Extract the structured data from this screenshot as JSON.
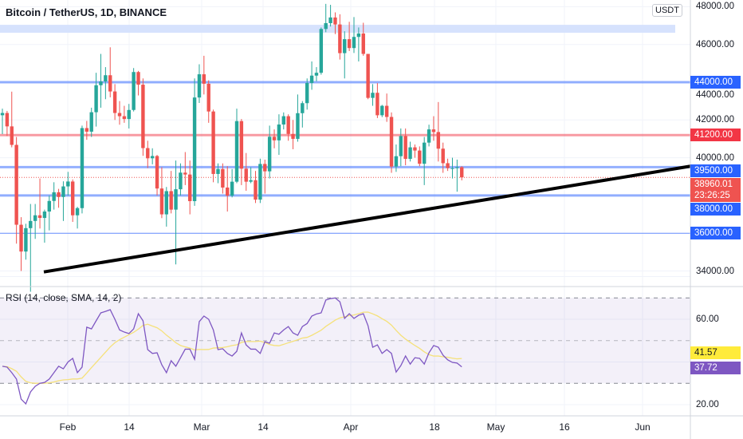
{
  "header": {
    "title": "Bitcoin / TetherUS, 1D, BINANCE",
    "currency_badge": "USDT"
  },
  "rsi": {
    "title": "RSI (14, close, SMA, 14, 2)",
    "value_label": "37.72",
    "sma_label": "41.57",
    "values": [
      38,
      37.6,
      35,
      32,
      22.6,
      20.4,
      26,
      28.6,
      30,
      30.4,
      32,
      35,
      38,
      36.8,
      40,
      41.7,
      35,
      37.6,
      56.3,
      55.5,
      59.3,
      63,
      63.7,
      64.5,
      60,
      55,
      54,
      53.3,
      55.5,
      62.6,
      59.3,
      45.8,
      44,
      44.3,
      38.7,
      35,
      40.6,
      38,
      42,
      46,
      46,
      41.3,
      58.9,
      61.5,
      60,
      55,
      45.8,
      46.2,
      44,
      42.8,
      45,
      53.6,
      48,
      46,
      46,
      44,
      49.5,
      48.8,
      53.6,
      53,
      55,
      56.6,
      53.6,
      52.5,
      56.6,
      58,
      61.5,
      62.5,
      63,
      69,
      69.7,
      70,
      68.2,
      60.4,
      62.6,
      60.4,
      61.9,
      62.6,
      57,
      46.9,
      48,
      44,
      45.8,
      44,
      35.3,
      38.3,
      42.8,
      39,
      42,
      41.7,
      39,
      44.3,
      47.7,
      46.9,
      43.2,
      41,
      39.8,
      39.5,
      37.72
    ],
    "axis_labels": [
      "60.00",
      "20.00"
    ],
    "upper_band": 70,
    "middle": 50,
    "lower_band": 30,
    "sma_length": 14
  },
  "price_axis": {
    "labels": [
      "48000.00",
      "46000.00",
      "44000.00",
      "42000.00",
      "40000.00",
      "34000.00"
    ]
  },
  "levels": [
    {
      "price": 44000,
      "label": "44000.00",
      "color": "#2962ff",
      "style": "line-blue"
    },
    {
      "price": 41200,
      "label": "41200.00",
      "color": "#f23645",
      "style": "line-red"
    },
    {
      "price": 39500,
      "label": "39500.00",
      "color": "#2962ff",
      "style": "line-blue"
    },
    {
      "price": 38000,
      "label": "38000.00",
      "color": "#2962ff",
      "style": "line-blue"
    },
    {
      "price": 36000,
      "label": "36000.00",
      "color": "#2962ff",
      "style": "line-thin"
    }
  ],
  "zone": {
    "from": 46620,
    "to": 47040
  },
  "last_price": {
    "price": 38960.01,
    "label": "38960.01",
    "countdown": "23:26:25",
    "color": "#ef5350"
  },
  "trendline": {
    "from_price": 33950,
    "to_price": 39550
  },
  "time_axis": {
    "labels": [
      "Feb",
      "14",
      "Mar",
      "14",
      "Apr",
      "18",
      "May",
      "16",
      "Jun"
    ]
  },
  "colors": {
    "up": "#26a69a",
    "down": "#ef5350",
    "rsi": "#7e57c2",
    "rsi_sma": "#f5e17a"
  },
  "candles": {
    "dates": [
      "Jan 18",
      "Jan 19",
      "Jan 20",
      "Jan 21",
      "Jan 22",
      "Jan 23",
      "Jan 24",
      "Jan 25",
      "Jan 26",
      "Jan 27",
      "Jan 28",
      "Jan 29",
      "Jan 30",
      "Jan 31",
      "Feb 1",
      "Feb 2",
      "Feb 3",
      "Feb 4",
      "Feb 5",
      "Feb 6",
      "Feb 7",
      "Feb 8",
      "Feb 9",
      "Feb 10",
      "Feb 11",
      "Feb 12",
      "Feb 13",
      "Feb 14",
      "Feb 15",
      "Feb 16",
      "Feb 17",
      "Feb 18",
      "Feb 19",
      "Feb 20",
      "Feb 21",
      "Feb 22",
      "Feb 23",
      "Feb 24",
      "Feb 25",
      "Feb 26",
      "Feb 27",
      "Feb 28",
      "Mar 1",
      "Mar 2",
      "Mar 3",
      "Mar 4",
      "Mar 5",
      "Mar 6",
      "Mar 7",
      "Mar 8",
      "Mar 9",
      "Mar 10",
      "Mar 11",
      "Mar 12",
      "Mar 13",
      "Mar 14",
      "Mar 15",
      "Mar 16",
      "Mar 17",
      "Mar 18",
      "Mar 19",
      "Mar 20",
      "Mar 21",
      "Mar 22",
      "Mar 23",
      "Mar 24",
      "Mar 25",
      "Mar 26",
      "Mar 27",
      "Mar 28",
      "Mar 29",
      "Mar 30",
      "Mar 31",
      "Apr 1",
      "Apr 2",
      "Apr 3",
      "Apr 4",
      "Apr 5",
      "Apr 6",
      "Apr 7",
      "Apr 8",
      "Apr 9",
      "Apr 10",
      "Apr 11",
      "Apr 12",
      "Apr 13",
      "Apr 14",
      "Apr 15",
      "Apr 16",
      "Apr 17",
      "Apr 18",
      "Apr 19",
      "Apr 20",
      "Apr 21",
      "Apr 22",
      "Apr 23",
      "Apr 24",
      "Apr 25",
      "Apr 26"
    ],
    "ohlc": [
      [
        42250,
        42600,
        41250,
        42370
      ],
      [
        42370,
        42480,
        41150,
        41660
      ],
      [
        41660,
        43500,
        40550,
        40680
      ],
      [
        40680,
        41100,
        35450,
        36450
      ],
      [
        36450,
        36850,
        34000,
        35030
      ],
      [
        35030,
        36500,
        34600,
        36270
      ],
      [
        36270,
        37550,
        32900,
        36650
      ],
      [
        36650,
        37550,
        35700,
        36950
      ],
      [
        36950,
        38900,
        36250,
        36810
      ],
      [
        36810,
        37250,
        35500,
        37150
      ],
      [
        37150,
        38000,
        36150,
        37710
      ],
      [
        37710,
        38700,
        37250,
        38170
      ],
      [
        38170,
        38350,
        37350,
        37920
      ],
      [
        37920,
        38750,
        36650,
        38480
      ],
      [
        38480,
        39250,
        38000,
        38740
      ],
      [
        38740,
        38850,
        36600,
        36950
      ],
      [
        36950,
        37400,
        36250,
        37330
      ],
      [
        37330,
        41700,
        37050,
        41570
      ],
      [
        41570,
        41950,
        40950,
        41380
      ],
      [
        41380,
        42650,
        41100,
        42410
      ],
      [
        42410,
        44500,
        41650,
        43840
      ],
      [
        43840,
        45500,
        42650,
        44040
      ],
      [
        44040,
        44800,
        43100,
        44370
      ],
      [
        44370,
        45850,
        43200,
        43510
      ],
      [
        43510,
        43900,
        42000,
        42370
      ],
      [
        42370,
        43000,
        41750,
        42200
      ],
      [
        42200,
        42750,
        41850,
        42050
      ],
      [
        42050,
        42850,
        41550,
        42530
      ],
      [
        42530,
        44750,
        42450,
        44540
      ],
      [
        44540,
        44600,
        43300,
        43870
      ],
      [
        43870,
        44200,
        40100,
        40510
      ],
      [
        40510,
        40900,
        39450,
        39970
      ],
      [
        39970,
        40500,
        39650,
        40090
      ],
      [
        40090,
        40150,
        38000,
        38370
      ],
      [
        38370,
        39500,
        36800,
        37000
      ],
      [
        37000,
        38450,
        36350,
        38230
      ],
      [
        38230,
        39300,
        37050,
        37250
      ],
      [
        37250,
        39850,
        34350,
        38330
      ],
      [
        38330,
        39700,
        38000,
        39210
      ],
      [
        39210,
        40300,
        38550,
        39110
      ],
      [
        39110,
        39850,
        37000,
        37700
      ],
      [
        37700,
        44200,
        37450,
        43190
      ],
      [
        43190,
        44950,
        42900,
        44420
      ],
      [
        44420,
        45400,
        43350,
        43920
      ],
      [
        43920,
        44100,
        41850,
        42450
      ],
      [
        42450,
        42550,
        38700,
        39140
      ],
      [
        39140,
        39700,
        38650,
        39400
      ],
      [
        39400,
        39700,
        38100,
        38420
      ],
      [
        38420,
        39550,
        37150,
        37990
      ],
      [
        37990,
        39400,
        37900,
        38730
      ],
      [
        38730,
        42600,
        38650,
        41940
      ],
      [
        41940,
        42050,
        38550,
        39420
      ],
      [
        39420,
        40250,
        38250,
        38730
      ],
      [
        38730,
        39500,
        38650,
        38810
      ],
      [
        38810,
        39300,
        37600,
        37780
      ],
      [
        37780,
        39950,
        37600,
        39670
      ],
      [
        39670,
        39900,
        38100,
        39280
      ],
      [
        39280,
        41700,
        38900,
        41110
      ],
      [
        41110,
        41500,
        40500,
        40920
      ],
      [
        40920,
        42300,
        40150,
        41760
      ],
      [
        41760,
        42400,
        41500,
        42200
      ],
      [
        42200,
        42300,
        40900,
        41260
      ],
      [
        41260,
        42000,
        40450,
        41000
      ],
      [
        41000,
        43350,
        40850,
        42360
      ],
      [
        42360,
        43000,
        41600,
        42890
      ],
      [
        42890,
        44200,
        42550,
        43960
      ],
      [
        43960,
        45100,
        43600,
        44350
      ],
      [
        44350,
        44800,
        44050,
        44500
      ],
      [
        44500,
        46900,
        44400,
        46820
      ],
      [
        46820,
        48150,
        46650,
        47130
      ],
      [
        47130,
        48100,
        46950,
        47430
      ],
      [
        47430,
        47700,
        46550,
        47060
      ],
      [
        47060,
        47600,
        45200,
        45540
      ],
      [
        45540,
        46700,
        44200,
        46280
      ],
      [
        46280,
        47200,
        45650,
        45810
      ],
      [
        45810,
        47450,
        45550,
        46400
      ],
      [
        46400,
        46900,
        45100,
        46580
      ],
      [
        46580,
        47150,
        45400,
        45500
      ],
      [
        45500,
        45500,
        43100,
        43170
      ],
      [
        43170,
        43900,
        42750,
        43440
      ],
      [
        43440,
        43950,
        42100,
        42250
      ],
      [
        42250,
        42800,
        42150,
        42750
      ],
      [
        42750,
        43400,
        41900,
        42160
      ],
      [
        42160,
        42400,
        39200,
        39530
      ],
      [
        39530,
        40700,
        39250,
        40080
      ],
      [
        40080,
        41550,
        39550,
        41150
      ],
      [
        41150,
        41550,
        39600,
        39940
      ],
      [
        39940,
        40850,
        39800,
        40550
      ],
      [
        40550,
        40700,
        40000,
        40380
      ],
      [
        40380,
        40600,
        39550,
        39680
      ],
      [
        39680,
        41100,
        38550,
        40800
      ],
      [
        40800,
        41750,
        40600,
        41500
      ],
      [
        41500,
        42200,
        40900,
        41360
      ],
      [
        41360,
        42950,
        39800,
        40480
      ],
      [
        40480,
        40800,
        39200,
        39710
      ],
      [
        39710,
        39950,
        39300,
        39450
      ],
      [
        39450,
        40000,
        38900,
        39450
      ],
      [
        39450,
        39900,
        38200,
        39500
      ],
      [
        39500,
        39550,
        38800,
        38960
      ]
    ]
  }
}
